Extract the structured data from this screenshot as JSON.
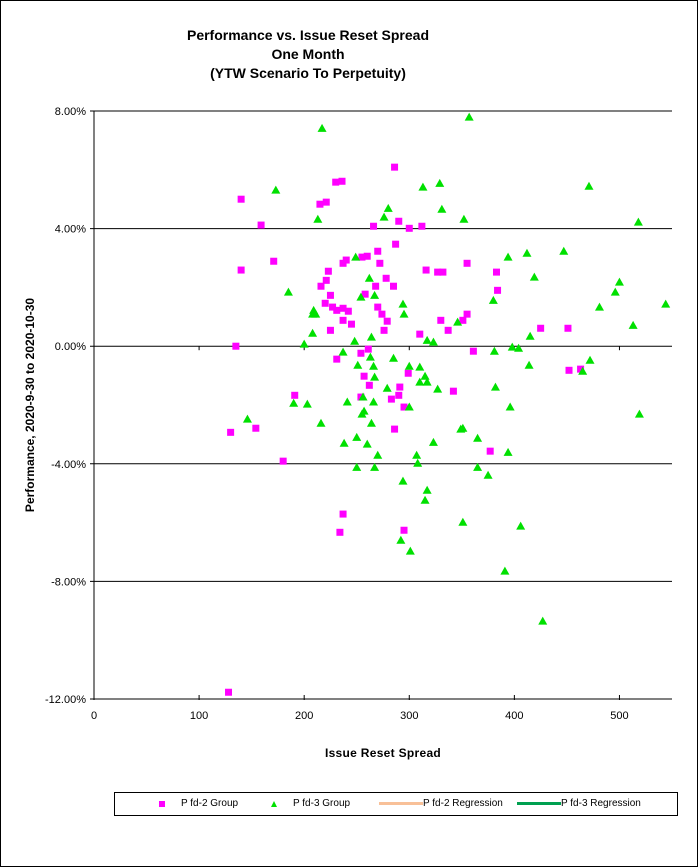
{
  "chart_data": {
    "type": "scatter",
    "title": [
      "Performance vs. Issue Reset Spread",
      "One Month",
      "(YTW Scenario To Perpetuity)"
    ],
    "xlabel": "Issue Reset Spread",
    "ylabel": "Performance, 2020-9-30  to 2020-10-30",
    "xlim": [
      0,
      550
    ],
    "ylim": [
      -12,
      8
    ],
    "xticks": [
      0,
      100,
      200,
      300,
      400,
      500
    ],
    "xtick_labels": [
      "0",
      "100",
      "200",
      "300",
      "400",
      "500"
    ],
    "yticks": [
      8,
      4,
      0,
      -4,
      -8,
      -12
    ],
    "ytick_labels": [
      "8.00%",
      "4.00%",
      "0.00%",
      "-4.00%",
      "-8.00%",
      "-12.00%"
    ],
    "grid": "horizontal",
    "legend_position": "bottom",
    "series": [
      {
        "name": "P fd-2 Group",
        "marker": "square",
        "color": "#FF00FF",
        "points": [
          [
            128,
            -11.77
          ],
          [
            130,
            -2.93
          ],
          [
            135,
            0.0
          ],
          [
            140,
            5.0
          ],
          [
            140,
            2.59
          ],
          [
            154,
            -2.79
          ],
          [
            159,
            4.12
          ],
          [
            171,
            2.89
          ],
          [
            180,
            -3.91
          ],
          [
            191,
            -1.67
          ],
          [
            215,
            4.83
          ],
          [
            221,
            4.9
          ],
          [
            230,
            5.58
          ],
          [
            236,
            5.61
          ],
          [
            216,
            2.04
          ],
          [
            221,
            2.24
          ],
          [
            223,
            2.55
          ],
          [
            225,
            1.73
          ],
          [
            220,
            1.46
          ],
          [
            227,
            1.33
          ],
          [
            231,
            1.22
          ],
          [
            237,
            1.29
          ],
          [
            242,
            1.19
          ],
          [
            237,
            0.88
          ],
          [
            245,
            0.75
          ],
          [
            225,
            0.54
          ],
          [
            237,
            2.82
          ],
          [
            240,
            2.93
          ],
          [
            255,
            3.03
          ],
          [
            260,
            3.06
          ],
          [
            258,
            1.77
          ],
          [
            266,
            4.08
          ],
          [
            270,
            3.23
          ],
          [
            272,
            2.82
          ],
          [
            268,
            2.04
          ],
          [
            278,
            2.31
          ],
          [
            285,
            2.04
          ],
          [
            270,
            1.33
          ],
          [
            274,
            1.09
          ],
          [
            279,
            0.85
          ],
          [
            276,
            0.54
          ],
          [
            286,
            6.09
          ],
          [
            290,
            4.25
          ],
          [
            300,
            4.01
          ],
          [
            312,
            4.08
          ],
          [
            287,
            3.47
          ],
          [
            316,
            2.59
          ],
          [
            327,
            2.52
          ],
          [
            332,
            2.52
          ],
          [
            355,
            2.82
          ],
          [
            383,
            2.52
          ],
          [
            384,
            1.9
          ],
          [
            310,
            0.41
          ],
          [
            330,
            0.88
          ],
          [
            337,
            0.54
          ],
          [
            351,
            0.88
          ],
          [
            355,
            1.09
          ],
          [
            361,
            -0.17
          ],
          [
            425,
            0.61
          ],
          [
            451,
            0.61
          ],
          [
            254,
            -0.24
          ],
          [
            261,
            -0.1
          ],
          [
            231,
            -0.44
          ],
          [
            257,
            -1.02
          ],
          [
            262,
            -1.33
          ],
          [
            299,
            -0.92
          ],
          [
            291,
            -1.39
          ],
          [
            290,
            -1.67
          ],
          [
            283,
            -1.8
          ],
          [
            254,
            -1.73
          ],
          [
            295,
            -2.07
          ],
          [
            342,
            -1.53
          ],
          [
            286,
            -2.82
          ],
          [
            377,
            -3.57
          ],
          [
            237,
            -5.71
          ],
          [
            234,
            -6.33
          ],
          [
            295,
            -6.26
          ],
          [
            452,
            -0.82
          ],
          [
            463,
            -0.78
          ]
        ]
      },
      {
        "name": "P fd-3 Group",
        "marker": "triangle",
        "color": "#00E000",
        "points": [
          [
            357,
            7.79
          ],
          [
            217,
            7.41
          ],
          [
            173,
            5.31
          ],
          [
            313,
            5.41
          ],
          [
            329,
            5.54
          ],
          [
            213,
            4.32
          ],
          [
            280,
            4.69
          ],
          [
            276,
            4.39
          ],
          [
            331,
            4.66
          ],
          [
            352,
            4.32
          ],
          [
            471,
            5.44
          ],
          [
            518,
            4.22
          ],
          [
            249,
            3.03
          ],
          [
            394,
            3.03
          ],
          [
            412,
            3.16
          ],
          [
            447,
            3.23
          ],
          [
            419,
            2.35
          ],
          [
            262,
            2.31
          ],
          [
            254,
            1.67
          ],
          [
            267,
            1.73
          ],
          [
            185,
            1.84
          ],
          [
            380,
            1.56
          ],
          [
            500,
            2.18
          ],
          [
            496,
            1.84
          ],
          [
            481,
            1.33
          ],
          [
            544,
            1.43
          ],
          [
            513,
            0.71
          ],
          [
            209,
            1.22
          ],
          [
            208,
            1.09
          ],
          [
            211,
            1.09
          ],
          [
            208,
            0.44
          ],
          [
            200,
            0.07
          ],
          [
            248,
            0.17
          ],
          [
            264,
            0.31
          ],
          [
            294,
            1.43
          ],
          [
            295,
            1.09
          ],
          [
            346,
            0.82
          ],
          [
            415,
            0.34
          ],
          [
            317,
            0.2
          ],
          [
            323,
            0.14
          ],
          [
            381,
            -0.17
          ],
          [
            398,
            -0.03
          ],
          [
            404,
            -0.07
          ],
          [
            237,
            -0.2
          ],
          [
            263,
            -0.37
          ],
          [
            285,
            -0.41
          ],
          [
            251,
            -0.65
          ],
          [
            266,
            -0.68
          ],
          [
            300,
            -0.68
          ],
          [
            310,
            -0.71
          ],
          [
            414,
            -0.65
          ],
          [
            472,
            -0.48
          ],
          [
            465,
            -0.85
          ],
          [
            267,
            -1.05
          ],
          [
            315,
            -1.02
          ],
          [
            310,
            -1.22
          ],
          [
            317,
            -1.22
          ],
          [
            279,
            -1.43
          ],
          [
            327,
            -1.46
          ],
          [
            382,
            -1.39
          ],
          [
            256,
            -1.73
          ],
          [
            266,
            -1.9
          ],
          [
            241,
            -1.9
          ],
          [
            203,
            -1.97
          ],
          [
            190,
            -1.94
          ],
          [
            300,
            -2.07
          ],
          [
            396,
            -2.07
          ],
          [
            257,
            -2.21
          ],
          [
            255,
            -2.31
          ],
          [
            146,
            -2.48
          ],
          [
            216,
            -2.62
          ],
          [
            264,
            -2.62
          ],
          [
            519,
            -2.31
          ],
          [
            250,
            -3.1
          ],
          [
            238,
            -3.3
          ],
          [
            260,
            -3.33
          ],
          [
            323,
            -3.27
          ],
          [
            349,
            -2.82
          ],
          [
            351,
            -2.79
          ],
          [
            365,
            -3.13
          ],
          [
            270,
            -3.71
          ],
          [
            307,
            -3.71
          ],
          [
            308,
            -3.98
          ],
          [
            250,
            -4.12
          ],
          [
            267,
            -4.12
          ],
          [
            365,
            -4.12
          ],
          [
            394,
            -3.61
          ],
          [
            375,
            -4.39
          ],
          [
            294,
            -4.59
          ],
          [
            317,
            -4.9
          ],
          [
            315,
            -5.24
          ],
          [
            351,
            -5.99
          ],
          [
            406,
            -6.12
          ],
          [
            292,
            -6.6
          ],
          [
            301,
            -6.97
          ],
          [
            391,
            -7.65
          ],
          [
            427,
            -9.35
          ]
        ]
      },
      {
        "name": "P fd-2 Regression",
        "marker": "line",
        "color": "#F8C098",
        "points": []
      },
      {
        "name": "P fd-3 Regression",
        "marker": "line",
        "color": "#00A050",
        "points": []
      }
    ]
  }
}
